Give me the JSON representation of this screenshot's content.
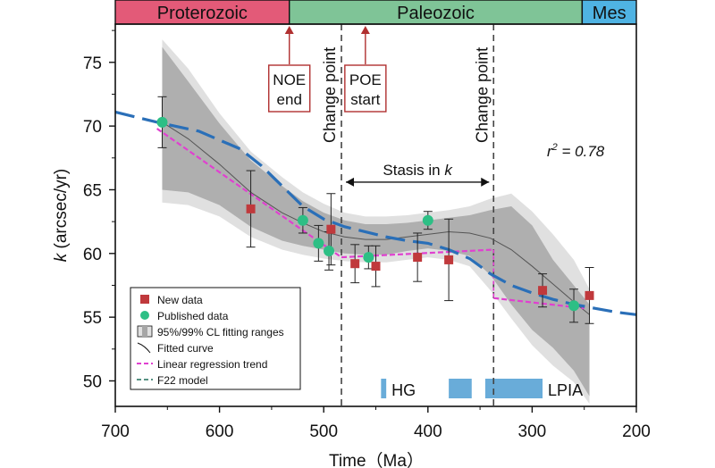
{
  "chart_data": {
    "type": "scatter",
    "title": "",
    "xlabel": "Time（Ma）",
    "ylabel_italic": "k",
    "ylabel_rest": " (arcsec/yr)",
    "xlim": [
      700,
      200
    ],
    "ylim": [
      48,
      78
    ],
    "x_ticks": [
      700,
      600,
      500,
      400,
      300,
      200
    ],
    "y_ticks": [
      50,
      55,
      60,
      65,
      70,
      75
    ],
    "grid": false,
    "eras": [
      {
        "name": "Proterozoic",
        "from": 700,
        "to": 533,
        "color": "#e35a78"
      },
      {
        "name": "Paleozoic",
        "from": 533,
        "to": 252,
        "color": "#7fc497"
      },
      {
        "name": "Mes",
        "from": 252,
        "to": 200,
        "color": "#4fb3e3"
      }
    ],
    "series": [
      {
        "name": "New data",
        "marker": "square",
        "color": "#c0393c",
        "x": [
          570,
          493,
          470,
          450,
          410,
          380,
          290,
          245
        ],
        "y": [
          63.5,
          61.9,
          59.2,
          59.0,
          59.7,
          59.5,
          57.1,
          56.7
        ],
        "err": [
          3.0,
          2.8,
          1.5,
          1.6,
          1.9,
          3.2,
          1.3,
          2.2
        ]
      },
      {
        "name": "Published data",
        "marker": "circle",
        "color": "#2dbf85",
        "x": [
          655,
          520,
          505,
          495,
          457,
          400,
          260
        ],
        "y": [
          70.3,
          62.6,
          60.8,
          60.2,
          59.7,
          62.6,
          55.9
        ],
        "err": [
          2.0,
          1.0,
          1.4,
          1.5,
          0.9,
          0.7,
          1.3
        ]
      }
    ],
    "fitted_curve": {
      "name": "Fitted curve",
      "x": [
        655,
        630,
        600,
        570,
        540,
        520,
        500,
        480,
        460,
        440,
        420,
        400,
        380,
        360,
        340,
        320,
        300,
        280,
        260,
        245
      ],
      "y": [
        70.3,
        69.0,
        67.0,
        64.8,
        63.2,
        62.4,
        61.7,
        61.3,
        61.1,
        61.1,
        61.3,
        61.5,
        61.7,
        61.6,
        61.2,
        60.3,
        59.0,
        57.6,
        56.2,
        55.2
      ],
      "ci95_upper": [
        76.2,
        73.5,
        70.2,
        67.3,
        65.3,
        64.1,
        63.2,
        62.6,
        62.3,
        62.3,
        62.4,
        62.6,
        62.8,
        63.0,
        63.4,
        63.7,
        62.2,
        59.5,
        57.5,
        56.0
      ],
      "ci95_lower": [
        65.0,
        64.8,
        63.8,
        62.1,
        61.0,
        60.6,
        60.3,
        60.0,
        59.9,
        59.9,
        60.2,
        60.4,
        60.2,
        59.8,
        58.3,
        56.0,
        54.0,
        52.6,
        50.8,
        48.8
      ],
      "ci99_upper": [
        76.8,
        74.5,
        71.0,
        68.0,
        66.0,
        64.8,
        63.9,
        63.2,
        62.9,
        62.9,
        63.0,
        63.2,
        63.4,
        63.7,
        64.3,
        64.7,
        63.3,
        61.5,
        59.5,
        57.2
      ],
      "ci99_lower": [
        64.0,
        63.8,
        62.9,
        61.3,
        60.3,
        59.9,
        59.6,
        59.4,
        59.3,
        59.3,
        59.5,
        59.7,
        59.5,
        59.0,
        57.1,
        54.9,
        52.8,
        51.2,
        49.9,
        48.2
      ]
    },
    "linear_trend": {
      "name": "Linear  regression trend",
      "segments": [
        {
          "x": [
            660,
            483
          ],
          "y": [
            69.8,
            59.7
          ]
        },
        {
          "x": [
            483,
            337
          ],
          "y": [
            59.7,
            60.3
          ]
        },
        {
          "x": [
            337,
            250
          ],
          "y": [
            56.5,
            55.7
          ]
        }
      ]
    },
    "f22_model": {
      "name": "F22 model",
      "x": [
        700,
        660,
        620,
        580,
        560,
        540,
        520,
        500,
        480,
        460,
        440,
        420,
        400,
        380,
        360,
        340,
        320,
        300,
        280,
        260,
        240,
        220,
        200
      ],
      "y": [
        71.1,
        70.3,
        69.6,
        68.2,
        66.9,
        65.3,
        63.7,
        62.7,
        62.1,
        61.7,
        61.3,
        61.0,
        60.8,
        60.3,
        59.6,
        58.4,
        57.5,
        56.9,
        56.4,
        56.0,
        55.7,
        55.4,
        55.2
      ]
    },
    "change_points": [
      {
        "x": 483,
        "label": "Change point"
      },
      {
        "x": 337,
        "label": "Change point"
      }
    ],
    "stasis": {
      "from": 483,
      "to": 337,
      "text": "Stasis in ",
      "k": "k",
      "y": 65.6
    },
    "r2": {
      "r": "r",
      "sup": "2",
      "rest": " = 0.78"
    },
    "event_markers": [
      {
        "x": 533,
        "lines": [
          "NOE",
          "end"
        ]
      },
      {
        "x": 460,
        "lines": [
          "POE",
          "start"
        ]
      }
    ],
    "glaciations": [
      {
        "from": 445,
        "to": 440,
        "label": "HG"
      },
      {
        "from": 380,
        "to": 358,
        "label": ""
      },
      {
        "from": 345,
        "to": 290,
        "label": "LPIA"
      }
    ],
    "legend": {
      "placement": "bottom-left",
      "entries": [
        "New data",
        "Published data",
        "95%/99% CL fitting ranges",
        "Fitted curve",
        "Linear  regression trend",
        "F22 model"
      ]
    },
    "colors": {
      "ci99": "#e0e0e0",
      "ci95": "#a6a6a6",
      "fit": "#555555",
      "trend": "#e040d0",
      "f22": "#2a6fb8",
      "glaciation": "#69acd9",
      "event": "#b03030"
    }
  }
}
